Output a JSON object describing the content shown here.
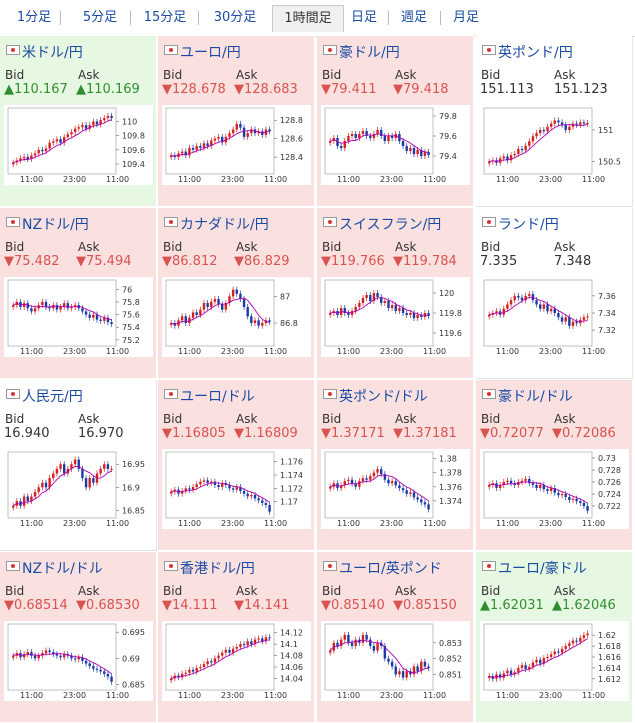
{
  "tabs": [
    {
      "label": "1分足",
      "active": false
    },
    {
      "label": "5分足",
      "active": false
    },
    {
      "label": "15分足",
      "active": false
    },
    {
      "label": "30分足",
      "active": false
    },
    {
      "label": "1時間足",
      "active": true
    },
    {
      "label": "日足",
      "active": false
    },
    {
      "label": "週足",
      "active": false
    },
    {
      "label": "月足",
      "active": false
    }
  ],
  "labels": {
    "bid": "Bid",
    "ask": "Ask"
  },
  "pairs": [
    {
      "name": "米ドル/円",
      "dir": "up",
      "bid": "▲110.167",
      "ask": "▲110.169",
      "ticks": [
        "110",
        "109.8",
        "109.6",
        "109.4"
      ],
      "ylim": [
        109.3,
        110.15
      ],
      "times": [
        "11:00",
        "23:00",
        "11:00"
      ],
      "close": [
        109.42,
        109.45,
        109.48,
        109.5,
        109.47,
        109.52,
        109.55,
        109.6,
        109.58,
        109.62,
        109.7,
        109.72,
        109.75,
        109.7,
        109.78,
        109.82,
        109.85,
        109.9,
        109.92,
        109.95,
        109.9,
        109.95,
        110.0,
        109.96,
        110.02,
        110.05,
        110.08,
        110.05
      ]
    },
    {
      "name": "ユーロ/円",
      "dir": "down",
      "bid": "▼128.678",
      "ask": "▼128.683",
      "ticks": [
        "128.8",
        "128.6",
        "128.4"
      ],
      "ylim": [
        128.25,
        128.9
      ],
      "times": [
        "11:00",
        "23:00",
        "11:00"
      ],
      "close": [
        128.42,
        128.4,
        128.44,
        128.46,
        128.42,
        128.5,
        128.48,
        128.52,
        128.5,
        128.55,
        128.52,
        128.58,
        128.6,
        128.62,
        128.56,
        128.62,
        128.66,
        128.7,
        128.76,
        128.72,
        128.62,
        128.66,
        128.7,
        128.66,
        128.68,
        128.64,
        128.7,
        128.68
      ]
    },
    {
      "name": "豪ドル/円",
      "dir": "down",
      "bid": "▼79.411",
      "ask": "▼79.418",
      "ticks": [
        "79.8",
        "79.6",
        "79.4"
      ],
      "ylim": [
        79.25,
        79.85
      ],
      "times": [
        "11:00",
        "23:00",
        "11:00"
      ],
      "close": [
        79.55,
        79.58,
        79.5,
        79.48,
        79.55,
        79.6,
        79.62,
        79.58,
        79.62,
        79.65,
        79.6,
        79.58,
        79.62,
        79.66,
        79.6,
        79.55,
        79.6,
        79.58,
        79.62,
        79.55,
        79.5,
        79.45,
        79.48,
        79.42,
        79.46,
        79.4,
        79.44,
        79.41
      ]
    },
    {
      "name": "英ポンド/円",
      "dir": "flat",
      "bid": "151.113",
      "ask": "151.123",
      "ticks": [
        "151",
        "150.5"
      ],
      "ylim": [
        150.35,
        151.3
      ],
      "times": [
        "11:00",
        "23:00",
        "11:00"
      ],
      "close": [
        150.5,
        150.52,
        150.48,
        150.55,
        150.58,
        150.52,
        150.6,
        150.62,
        150.7,
        150.68,
        150.75,
        150.82,
        150.9,
        150.95,
        151.0,
        150.98,
        151.05,
        151.1,
        151.15,
        151.12,
        151.08,
        151.0,
        151.05,
        151.1,
        151.08,
        151.12,
        151.1,
        151.11
      ]
    },
    {
      "name": "NZドル/円",
      "dir": "down",
      "bid": "▼75.482",
      "ask": "▼75.494",
      "ticks": [
        "76",
        "75.8",
        "75.6",
        "75.4",
        "75.2"
      ],
      "ylim": [
        75.15,
        76.1
      ],
      "times": [
        "11:00",
        "23:00",
        "11:00"
      ],
      "close": [
        75.75,
        75.8,
        75.72,
        75.78,
        75.7,
        75.65,
        75.7,
        75.75,
        75.8,
        75.72,
        75.7,
        75.75,
        75.68,
        75.72,
        75.78,
        75.7,
        75.72,
        75.75,
        75.7,
        75.65,
        75.6,
        75.55,
        75.6,
        75.52,
        75.5,
        75.55,
        75.48,
        75.45
      ]
    },
    {
      "name": "カナダドル/円",
      "dir": "down",
      "bid": "▼86.812",
      "ask": "▼86.829",
      "ticks": [
        "87",
        "86.8"
      ],
      "ylim": [
        86.65,
        87.1
      ],
      "times": [
        "11:00",
        "23:00",
        "11:00"
      ],
      "close": [
        86.8,
        86.78,
        86.82,
        86.85,
        86.8,
        86.84,
        86.88,
        86.86,
        86.9,
        86.95,
        86.92,
        86.96,
        86.98,
        86.94,
        86.9,
        86.95,
        87.0,
        87.05,
        87.02,
        86.98,
        86.92,
        86.85,
        86.8,
        86.82,
        86.78,
        86.8,
        86.82,
        86.81
      ]
    },
    {
      "name": "スイスフラン/円",
      "dir": "down",
      "bid": "▼119.766",
      "ask": "▼119.784",
      "ticks": [
        "120",
        "119.8",
        "119.6"
      ],
      "ylim": [
        119.5,
        120.1
      ],
      "times": [
        "11:00",
        "23:00",
        "11:00"
      ],
      "close": [
        119.8,
        119.82,
        119.78,
        119.85,
        119.8,
        119.78,
        119.82,
        119.86,
        119.9,
        119.95,
        119.98,
        119.92,
        120.0,
        119.96,
        119.9,
        119.92,
        119.85,
        119.88,
        119.82,
        119.85,
        119.8,
        119.78,
        119.8,
        119.75,
        119.78,
        119.76,
        119.8,
        119.77
      ]
    },
    {
      "name": "ランド/円",
      "dir": "flat",
      "bid": "7.335",
      "ask": "7.348",
      "ticks": [
        "7.36",
        "7.34",
        "7.32"
      ],
      "ylim": [
        7.305,
        7.375
      ],
      "times": [
        "11:00",
        "23:00",
        "11:00"
      ],
      "close": [
        7.338,
        7.34,
        7.342,
        7.338,
        7.345,
        7.35,
        7.355,
        7.36,
        7.358,
        7.355,
        7.36,
        7.362,
        7.355,
        7.35,
        7.345,
        7.35,
        7.342,
        7.345,
        7.34,
        7.335,
        7.33,
        7.335,
        7.325,
        7.33,
        7.328,
        7.332,
        7.335,
        7.336
      ]
    },
    {
      "name": "人民元/円",
      "dir": "flat",
      "bid": "16.940",
      "ask": "16.970",
      "ticks": [
        "16.95",
        "16.9",
        "16.85"
      ],
      "ylim": [
        16.84,
        16.97
      ],
      "times": [
        "11:00",
        "23:00",
        "11:00"
      ],
      "close": [
        16.86,
        16.87,
        16.86,
        16.88,
        16.87,
        16.88,
        16.89,
        16.9,
        16.91,
        16.9,
        16.92,
        16.93,
        16.94,
        16.95,
        16.93,
        16.94,
        16.95,
        16.96,
        16.94,
        16.92,
        16.9,
        16.92,
        16.91,
        16.93,
        16.94,
        16.95,
        16.94,
        16.94
      ]
    },
    {
      "name": "ユーロ/ドル",
      "dir": "down",
      "bid": "▼1.16805",
      "ask": "▼1.16809",
      "ticks": [
        "1.176",
        "1.174",
        "1.172",
        "1.17"
      ],
      "ylim": [
        1.168,
        1.177
      ],
      "times": [
        "11:00",
        "23:00",
        "11:00"
      ],
      "close": [
        1.1715,
        1.1718,
        1.1712,
        1.1716,
        1.172,
        1.1718,
        1.1722,
        1.1726,
        1.173,
        1.1732,
        1.1728,
        1.173,
        1.1725,
        1.1722,
        1.1728,
        1.1725,
        1.172,
        1.1718,
        1.1722,
        1.1716,
        1.1712,
        1.1708,
        1.171,
        1.1705,
        1.1702,
        1.1698,
        1.1695,
        1.1685
      ]
    },
    {
      "name": "英ポンド/ドル",
      "dir": "down",
      "bid": "▼1.37171",
      "ask": "▼1.37181",
      "ticks": [
        "1.38",
        "1.378",
        "1.376",
        "1.374"
      ],
      "ylim": [
        1.372,
        1.3805
      ],
      "times": [
        "11:00",
        "23:00",
        "11:00"
      ],
      "close": [
        1.376,
        1.3765,
        1.3758,
        1.3762,
        1.3768,
        1.377,
        1.3765,
        1.376,
        1.3768,
        1.3772,
        1.377,
        1.3775,
        1.378,
        1.3785,
        1.3778,
        1.377,
        1.3765,
        1.3768,
        1.3762,
        1.3758,
        1.3755,
        1.375,
        1.3752,
        1.3745,
        1.3742,
        1.3738,
        1.3735,
        1.3728
      ]
    },
    {
      "name": "豪ドル/ドル",
      "dir": "down",
      "bid": "▼0.72077",
      "ask": "▼0.72086",
      "ticks": [
        "0.73",
        "0.728",
        "0.726",
        "0.724",
        "0.722"
      ],
      "ylim": [
        0.7205,
        0.7305
      ],
      "times": [
        "11:00",
        "23:00",
        "11:00"
      ],
      "close": [
        0.7255,
        0.7258,
        0.725,
        0.7255,
        0.726,
        0.7262,
        0.7258,
        0.7255,
        0.726,
        0.7262,
        0.7265,
        0.7258,
        0.7255,
        0.725,
        0.7255,
        0.7248,
        0.7245,
        0.725,
        0.7242,
        0.7238,
        0.724,
        0.7235,
        0.723,
        0.7232,
        0.7228,
        0.7225,
        0.722,
        0.7212
      ]
    },
    {
      "name": "NZドル/ドル",
      "dir": "down",
      "bid": "▼0.68514",
      "ask": "▼0.68530",
      "ticks": [
        "0.695",
        "0.69",
        "0.685"
      ],
      "ylim": [
        0.6845,
        0.696
      ],
      "times": [
        "11:00",
        "23:00",
        "11:00"
      ],
      "close": [
        0.6905,
        0.691,
        0.6902,
        0.6908,
        0.6912,
        0.6905,
        0.69,
        0.6905,
        0.691,
        0.6915,
        0.6912,
        0.6908,
        0.6905,
        0.6902,
        0.6908,
        0.6905,
        0.69,
        0.6898,
        0.6902,
        0.6895,
        0.689,
        0.6885,
        0.688,
        0.6878,
        0.6875,
        0.687,
        0.6865,
        0.6855
      ]
    },
    {
      "name": "香港ドル/円",
      "dir": "down",
      "bid": "▼14.111",
      "ask": "▼14.141",
      "ticks": [
        "14.12",
        "14.1",
        "14.08",
        "14.06",
        "14.04"
      ],
      "ylim": [
        14.025,
        14.13
      ],
      "times": [
        "11:00",
        "23:00",
        "11:00"
      ],
      "close": [
        14.04,
        14.045,
        14.042,
        14.048,
        14.05,
        14.055,
        14.052,
        14.058,
        14.06,
        14.065,
        14.07,
        14.068,
        14.075,
        14.08,
        14.085,
        14.09,
        14.085,
        14.092,
        14.095,
        14.1,
        14.098,
        14.105,
        14.1,
        14.108,
        14.11,
        14.105,
        14.112,
        14.111
      ]
    },
    {
      "name": "ユーロ/英ポンド",
      "dir": "down",
      "bid": "▼0.85140",
      "ask": "▼0.85150",
      "ticks": [
        "0.853",
        "0.852",
        "0.851"
      ],
      "ylim": [
        0.8502,
        0.854
      ],
      "times": [
        "11:00",
        "23:00",
        "11:00"
      ],
      "close": [
        0.8525,
        0.853,
        0.8528,
        0.8532,
        0.8535,
        0.853,
        0.8528,
        0.8532,
        0.853,
        0.8535,
        0.8532,
        0.8528,
        0.8525,
        0.853,
        0.8528,
        0.852,
        0.8518,
        0.8515,
        0.851,
        0.8512,
        0.8508,
        0.8512,
        0.851,
        0.8515,
        0.8512,
        0.8518,
        0.8515,
        0.8514
      ]
    },
    {
      "name": "ユーロ/豪ドル",
      "dir": "up",
      "bid": "▲1.62031",
      "ask": "▲1.62046",
      "ticks": [
        "1.62",
        "1.618",
        "1.616",
        "1.614",
        "1.612"
      ],
      "ylim": [
        1.6105,
        1.6215
      ],
      "times": [
        "11:00",
        "23:00",
        "11:00"
      ],
      "close": [
        1.6125,
        1.612,
        1.6128,
        1.6122,
        1.613,
        1.6135,
        1.6128,
        1.6132,
        1.614,
        1.6145,
        1.6138,
        1.6142,
        1.615,
        1.6155,
        1.6148,
        1.6158,
        1.616,
        1.6165,
        1.617,
        1.6168,
        1.6175,
        1.618,
        1.6185,
        1.619,
        1.6188,
        1.6195,
        1.62,
        1.6203
      ]
    }
  ],
  "colors": {
    "up_bg": "#e6f7e2",
    "down_bg": "#fbe0e0",
    "candle_up": "#d62020",
    "candle_down": "#1a3aa8",
    "ma": "#b000b0",
    "link": "#1a4ca3"
  }
}
